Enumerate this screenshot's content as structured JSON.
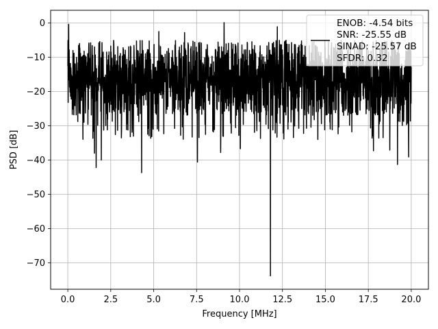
{
  "chart_data": {
    "type": "line",
    "xlabel": "Frequency [MHz]",
    "ylabel": "PSD [dB]",
    "xlim": [
      -1,
      21
    ],
    "ylim": [
      -77.7,
      3.7
    ],
    "xticks": [
      0.0,
      2.5,
      5.0,
      7.5,
      10.0,
      12.5,
      15.0,
      17.5,
      20.0
    ],
    "xtick_labels": [
      "0.0",
      "2.5",
      "5.0",
      "7.5",
      "10.0",
      "12.5",
      "15.0",
      "17.5",
      "20.0"
    ],
    "yticks": [
      0,
      -10,
      -20,
      -30,
      -40,
      -50,
      -60,
      -70
    ],
    "ytick_labels": [
      "0",
      "−10",
      "−20",
      "−30",
      "−40",
      "−50",
      "−60",
      "−70"
    ],
    "grid": true,
    "legend_position": "upper right",
    "legend": [
      "ENOB: -4.54 bits",
      "SNR: -25.55 dB",
      "SINAD: -25.57 dB",
      "SFDR: 0.32"
    ],
    "series": [
      {
        "color": "#000000",
        "x_range": [
          0,
          20
        ],
        "envelope": {
          "typical_upper_dB": -5,
          "typical_lower_dB": -27
        },
        "peaks": [
          {
            "x": 0.05,
            "y": -0.4
          },
          {
            "x": 9.1,
            "y": 0.1
          },
          {
            "x": 12.2,
            "y": -1.1
          },
          {
            "x": 5.3,
            "y": -2.5
          },
          {
            "x": 6.8,
            "y": -2.8
          }
        ],
        "dips": [
          {
            "x": 1.65,
            "y": -42.2
          },
          {
            "x": 1.95,
            "y": -40
          },
          {
            "x": 1.55,
            "y": -38
          },
          {
            "x": 4.3,
            "y": -43.7
          },
          {
            "x": 7.55,
            "y": -40.6
          },
          {
            "x": 8.9,
            "y": -37.8
          },
          {
            "x": 10.05,
            "y": -36.7
          },
          {
            "x": 11.8,
            "y": -73.8
          },
          {
            "x": 19.2,
            "y": -41.3
          },
          {
            "x": 18.75,
            "y": -37.1
          },
          {
            "x": 17.8,
            "y": -37.3
          },
          {
            "x": 19.85,
            "y": -39.1
          }
        ]
      }
    ]
  }
}
